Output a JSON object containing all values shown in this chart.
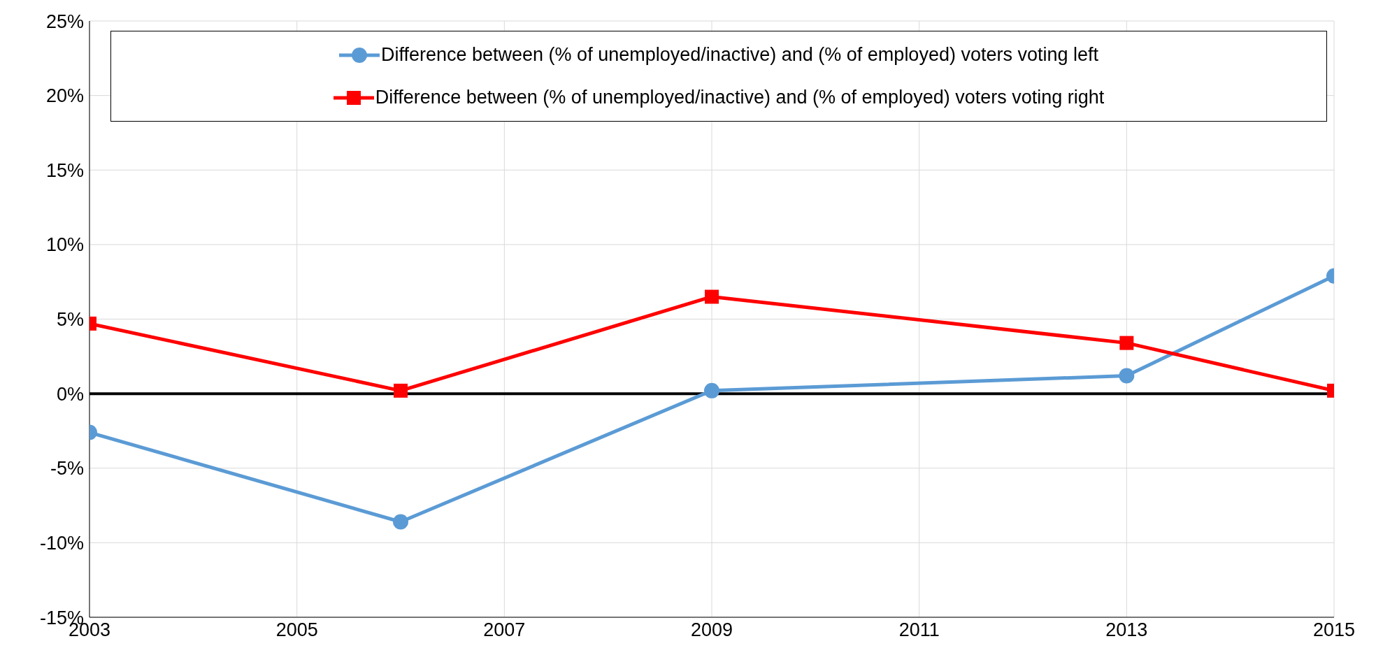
{
  "chart_data": {
    "type": "line",
    "x": [
      2003,
      2006,
      2009,
      2013,
      2015
    ],
    "series": [
      {
        "name": "Difference between (% of unemployed/inactive) and (% of employed) voters voting left",
        "color": "#5b9bd5",
        "marker": "circle",
        "values": [
          -2.6,
          -8.6,
          0.2,
          1.2,
          7.9
        ]
      },
      {
        "name": "Difference between (% of unemployed/inactive) and (% of employed) voters voting right",
        "color": "#ff0000",
        "marker": "square",
        "values": [
          4.7,
          0.2,
          6.5,
          3.4,
          0.2
        ]
      }
    ],
    "xlim": [
      2003,
      2015
    ],
    "xticks": [
      2003,
      2005,
      2007,
      2009,
      2011,
      2013,
      2015
    ],
    "ylim": [
      -15,
      25
    ],
    "yticks": [
      {
        "value": -15,
        "label": "-15%"
      },
      {
        "value": -10,
        "label": "-10%"
      },
      {
        "value": -5,
        "label": "-5%"
      },
      {
        "value": 0,
        "label": "0%"
      },
      {
        "value": 5,
        "label": "5%"
      },
      {
        "value": 10,
        "label": "10%"
      },
      {
        "value": 15,
        "label": "15%"
      },
      {
        "value": 20,
        "label": "20%"
      },
      {
        "value": 25,
        "label": "25%"
      }
    ],
    "ref_lines": [
      {
        "axis": "y",
        "value": 0,
        "color": "#000000"
      }
    ],
    "grid": true,
    "legend": "top",
    "line_style": "solid"
  }
}
